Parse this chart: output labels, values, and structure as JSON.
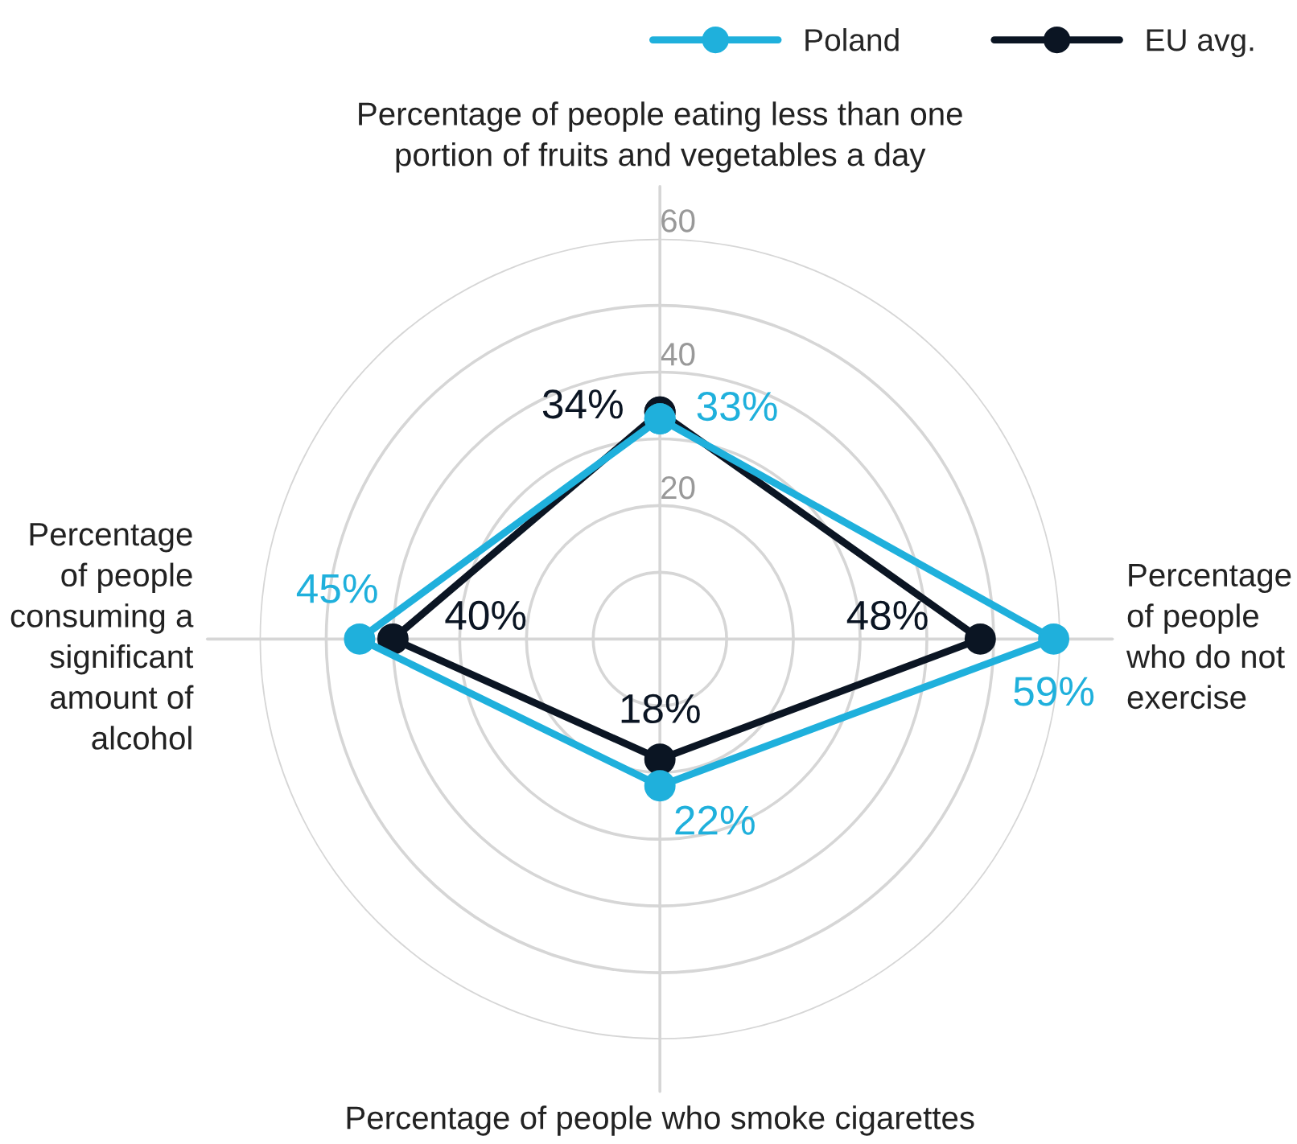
{
  "chart_data": {
    "type": "radar",
    "categories": [
      "Percentage of people eating less than one\nportion of fruits and vegetables a day",
      "Percentage\nof people\nwho do not\nexercise",
      "Percentage of people who smoke cigarettes",
      "Percentage\nof people\nconsuming a\nsignificant\namount of\nalcohol"
    ],
    "series": [
      {
        "name": "Poland",
        "color": "#1fb0dc",
        "values": [
          33,
          59,
          22,
          45
        ],
        "value_labels": [
          "33%",
          "59%",
          "22%",
          "45%"
        ]
      },
      {
        "name": "EU avg.",
        "color": "#0b1523",
        "values": [
          34,
          48,
          18,
          40
        ],
        "value_labels": [
          "34%",
          "48%",
          "18%",
          "40%"
        ]
      }
    ],
    "ylim": [
      0,
      60
    ],
    "yticks": [
      20,
      40,
      60
    ],
    "grid": true,
    "legend": "top right",
    "marker": "circle",
    "line_style": "solid"
  }
}
